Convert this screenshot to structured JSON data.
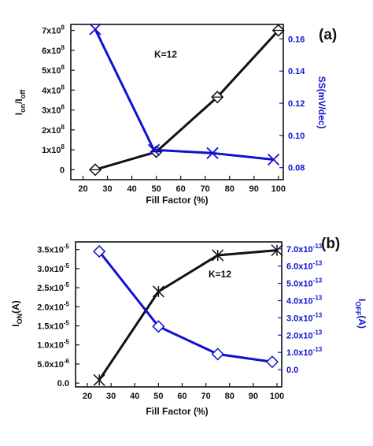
{
  "colors": {
    "black_series": "#111111",
    "blue_series": "#1010d0"
  },
  "chart_data": [
    {
      "panel": "(a)",
      "type": "line",
      "annotation": "K=12",
      "xlabel": "Fill Factor (%)",
      "xlim": [
        15,
        102
      ],
      "xticks": [
        "20",
        "30",
        "40",
        "50",
        "60",
        "70",
        "80",
        "90",
        "100"
      ],
      "ylabel_left": "I_on/I_off",
      "ylim_left": [
        -50000000.0,
        730000000.0
      ],
      "yticks_left": [
        {
          "mant": "0",
          "exp": ""
        },
        {
          "mant": "1x10",
          "exp": "8"
        },
        {
          "mant": "2x10",
          "exp": "8"
        },
        {
          "mant": "3x10",
          "exp": "8"
        },
        {
          "mant": "4x10",
          "exp": "8"
        },
        {
          "mant": "5x10",
          "exp": "8"
        },
        {
          "mant": "6x10",
          "exp": "8"
        },
        {
          "mant": "7x10",
          "exp": "8"
        }
      ],
      "ylabel_right": "SS(mV/dec)",
      "ylim_right": [
        0.0725,
        0.169
      ],
      "yticks_right": [
        "0.08",
        "0.10",
        "0.12",
        "0.14",
        "0.16"
      ],
      "series": [
        {
          "axis": "left",
          "color": "#111111",
          "marker": "diamond-cross",
          "x": [
            25,
            50,
            75,
            100
          ],
          "values": [
            0,
            90000000,
            365000000,
            700000000
          ]
        },
        {
          "axis": "right",
          "color": "#1010d0",
          "marker": "x",
          "x": [
            25,
            49,
            73,
            98
          ],
          "values": [
            0.166,
            0.091,
            0.089,
            0.085
          ]
        }
      ]
    },
    {
      "panel": "(b)",
      "type": "line",
      "annotation": "K=12",
      "xlabel": "Fill Factor (%)",
      "xlim": [
        15,
        102
      ],
      "xticks": [
        "20",
        "30",
        "40",
        "50",
        "60",
        "70",
        "80",
        "90",
        "100"
      ],
      "ylabel_left": "I_ON(A)",
      "ylim_left": [
        -1e-06,
        3.7e-05
      ],
      "yticks_left": [
        {
          "mant": "0.0",
          "exp": ""
        },
        {
          "mant": "5.0x10",
          "exp": "-6"
        },
        {
          "mant": "1.0x10",
          "exp": "-5"
        },
        {
          "mant": "1.5x10",
          "exp": "-5"
        },
        {
          "mant": "2.0x10",
          "exp": "-5"
        },
        {
          "mant": "2.5x10",
          "exp": "-5"
        },
        {
          "mant": "3.0x10",
          "exp": "-5"
        },
        {
          "mant": "3.5x10",
          "exp": "-5"
        }
      ],
      "ylabel_right": "I_OFF(A)",
      "ylim_right": [
        -1e-13,
        7.4e-13
      ],
      "yticks_right": [
        {
          "mant": "0.0",
          "exp": ""
        },
        {
          "mant": "1.0x10",
          "exp": "-13"
        },
        {
          "mant": "2.0x10",
          "exp": "-13"
        },
        {
          "mant": "3.0x10",
          "exp": "-13"
        },
        {
          "mant": "4.0x10",
          "exp": "-13"
        },
        {
          "mant": "5.0x10",
          "exp": "-13"
        },
        {
          "mant": "6.0x10",
          "exp": "-13"
        },
        {
          "mant": "7.0x10",
          "exp": "-13"
        }
      ],
      "series": [
        {
          "axis": "left",
          "color": "#111111",
          "marker": "asterisk",
          "x": [
            25,
            50,
            75,
            100
          ],
          "values": [
            8e-07,
            2.4e-05,
            3.35e-05,
            3.48e-05
          ]
        },
        {
          "axis": "right",
          "color": "#1010d0",
          "marker": "diamond",
          "x": [
            25,
            50,
            75,
            98
          ],
          "values": [
            6.85e-13,
            2.5e-13,
            9e-14,
            4.5e-14
          ]
        }
      ]
    }
  ]
}
